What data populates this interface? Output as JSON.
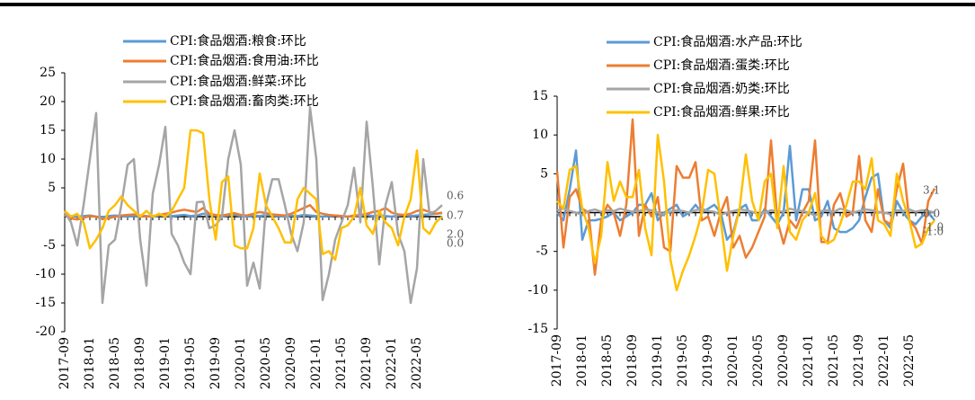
{
  "chart_data": [
    {
      "type": "line",
      "categories": [
        "2017-09",
        null,
        null,
        null,
        "2018-01",
        null,
        null,
        null,
        "2018-05",
        null,
        null,
        null,
        "2018-09",
        null,
        null,
        null,
        "2019-01",
        null,
        null,
        null,
        "2019-05",
        null,
        null,
        null,
        "2019-09",
        null,
        null,
        null,
        "2020-01",
        null,
        null,
        null,
        "2020-05",
        null,
        null,
        null,
        "2020-09",
        null,
        null,
        null,
        "2021-01",
        null,
        null,
        null,
        "2021-05",
        null,
        null,
        null,
        "2021-09",
        null,
        null,
        null,
        "2022-01",
        null,
        null,
        null,
        "2022-05",
        null,
        null,
        null,
        null
      ],
      "ylim": [
        -20,
        25
      ],
      "yticks": [
        -20,
        -15,
        -10,
        -5,
        5,
        10,
        15,
        20,
        25
      ],
      "series": [
        {
          "name": "CPI:食品烟酒:粮食:环比",
          "color": "#5b9bd5",
          "values": [
            0.2,
            0.1,
            0,
            0.1,
            0.2,
            0,
            -0.1,
            0.1,
            0.2,
            0.1,
            0,
            0.1,
            0.2,
            0.1,
            0,
            0.2,
            0.3,
            0.1,
            0.2,
            0.3,
            0.1,
            0.2,
            0.5,
            0.3,
            0.2,
            0.1,
            0.2,
            0.3,
            0.1,
            0,
            0.2,
            0.1,
            0.3,
            0.2,
            0.1,
            0,
            0.2,
            0.1,
            0.3,
            0.2,
            0.1,
            0,
            0.1,
            0.2,
            0.1,
            0,
            0.1,
            0.2,
            0.3,
            0.1,
            0.2,
            0.1,
            0,
            0.2,
            0.3,
            0.1,
            0.2,
            0.3,
            0.4,
            0.5,
            0.6
          ]
        },
        {
          "name": "CPI:食品烟酒:食用油:环比",
          "color": "#ed7d31",
          "values": [
            0.3,
            -0.3,
            -0.5,
            -0.2,
            0.1,
            0,
            -0.4,
            -0.3,
            0,
            0.2,
            0.3,
            0.4,
            0.2,
            0,
            0.1,
            0.3,
            0.5,
            0.7,
            1,
            1.2,
            1,
            0.8,
            1.5,
            0.5,
            0.3,
            0.2,
            0.4,
            0.6,
            0.3,
            0.2,
            0.5,
            0.8,
            0.6,
            0.4,
            0.3,
            0.2,
            0.5,
            1,
            1.5,
            2,
            0.8,
            0.5,
            0.3,
            0.2,
            0.1,
            0,
            0.2,
            0.3,
            0.5,
            0.8,
            1,
            1.5,
            0.7,
            0.4,
            0.3,
            0.5,
            1,
            1.2,
            0.8,
            0.5,
            0.7
          ]
        },
        {
          "name": "CPI:食品烟酒:鲜菜:环比",
          "color": "#a5a5a5",
          "values": [
            0.8,
            -1,
            -5,
            2,
            10,
            18,
            -15,
            -5,
            -4,
            2,
            9,
            10,
            -4,
            -12,
            4,
            9,
            15.6,
            -3,
            -5,
            -8,
            -10,
            2.5,
            2.6,
            -2,
            -1.5,
            0,
            10,
            15,
            9,
            -12,
            -8,
            -12.5,
            2,
            6.5,
            6.5,
            2,
            -3,
            -6,
            -1,
            19,
            10,
            -14.5,
            -10,
            -4,
            -1,
            2,
            8.5,
            -1,
            16.5,
            5,
            -8.3,
            2,
            6,
            -3,
            -6,
            -15,
            -9,
            10,
            0.5,
            1,
            2
          ]
        },
        {
          "name": "CPI:食品烟酒:畜肉类:环比",
          "color": "#ffc000",
          "values": [
            1,
            0,
            0.5,
            -1,
            -5.5,
            -4,
            -2,
            1,
            2,
            3.5,
            2,
            1,
            0,
            1,
            0,
            0.5,
            0,
            1,
            3,
            5,
            15,
            15,
            14.5,
            3,
            -4,
            6,
            7,
            -5,
            -5.5,
            -5.5,
            -2,
            7.5,
            2,
            0,
            -2,
            -4.5,
            -4.5,
            3,
            5,
            4,
            3,
            -6.5,
            -6,
            -7.5,
            -2,
            -1.5,
            0,
            5,
            -1.5,
            -3,
            1,
            -1,
            -2,
            -5,
            0,
            3,
            11.5,
            -2,
            -3,
            -1,
            0
          ]
        }
      ],
      "annotations": [
        "0.6",
        "0.7",
        "2.0",
        "0.0"
      ]
    },
    {
      "type": "line",
      "categories": [
        "2017-09",
        null,
        null,
        null,
        "2018-01",
        null,
        null,
        null,
        "2018-05",
        null,
        null,
        null,
        "2018-09",
        null,
        null,
        null,
        "2019-01",
        null,
        null,
        null,
        "2019-05",
        null,
        null,
        null,
        "2019-09",
        null,
        null,
        null,
        "2020-01",
        null,
        null,
        null,
        "2020-05",
        null,
        null,
        null,
        "2020-09",
        null,
        null,
        null,
        "2021-01",
        null,
        null,
        null,
        "2021-05",
        null,
        null,
        null,
        "2021-09",
        null,
        null,
        null,
        "2022-01",
        null,
        null,
        null,
        "2022-05",
        null,
        null,
        null,
        null
      ],
      "ylim": [
        -15,
        15
      ],
      "yticks": [
        -15,
        -10,
        -5,
        5,
        10,
        15
      ],
      "series": [
        {
          "name": "CPI:食品烟酒:水产品:环比",
          "color": "#5b9bd5",
          "values": [
            0,
            -1,
            3,
            8,
            -3.5,
            -1,
            -1,
            -0.8,
            -0.5,
            0,
            -1,
            -0.5,
            0,
            1,
            1,
            2.5,
            -1,
            0,
            0.5,
            1,
            -0.5,
            0,
            1,
            0,
            0.5,
            1,
            0,
            -3.5,
            -2.5,
            0.5,
            1,
            -1,
            -1,
            0.5,
            -0.5,
            -1.5,
            0,
            8.6,
            -1,
            3,
            3,
            -1,
            -0.5,
            1.5,
            -2,
            -2.5,
            -2.5,
            -2,
            -1,
            2,
            4.5,
            5,
            -1,
            -2,
            1.5,
            0,
            -1,
            -1.5,
            -0.5,
            0,
            -1
          ]
        },
        {
          "name": "CPI:食品烟酒:蛋类:环比",
          "color": "#ed7d31",
          "values": [
            5.3,
            -4.5,
            2,
            3,
            0.5,
            0,
            -8,
            -1,
            1,
            0,
            -3,
            1,
            12,
            -3,
            1,
            -0.5,
            2,
            -4.5,
            -5,
            6,
            4.5,
            4.5,
            6.5,
            -1,
            -0.5,
            -3,
            0,
            2,
            -4.5,
            -3,
            -5.8,
            -4.5,
            -2.5,
            -0.5,
            9.3,
            -1,
            -4,
            -1,
            -2,
            0,
            1.5,
            9.3,
            -3.8,
            -3.8,
            1,
            2.5,
            -0.5,
            0,
            7.3,
            -1,
            -2.5,
            3,
            -1,
            -1.5,
            3,
            6.3,
            -1,
            -2,
            -4,
            1.5,
            3.1
          ]
        },
        {
          "name": "CPI:食品烟酒:奶类:环比",
          "color": "#a5a5a5",
          "values": [
            0.3,
            0.5,
            0.2,
            0,
            -0.3,
            0.2,
            0.4,
            0.1,
            0.3,
            0.2,
            0.5,
            0.3,
            0.1,
            0.2,
            0.4,
            0.3,
            0,
            -0.2,
            0.1,
            0.3,
            0.2,
            0,
            0.3,
            0.5,
            0.2,
            0.1,
            -0.3,
            0,
            0.2,
            0.4,
            0.3,
            0.1,
            -0.2,
            0,
            0.3,
            0.2,
            0.1,
            0.5,
            0.3,
            0.2,
            0,
            -0.4,
            0.2,
            0.3,
            0.1,
            0.5,
            0.3,
            0,
            0.2,
            0.4,
            0.3,
            0.1,
            0,
            -0.2,
            0.3,
            0.2,
            0.4,
            0.1,
            0.3,
            0.2,
            0
          ]
        },
        {
          "name": "CPI:食品烟酒:鲜果:环比",
          "color": "#ffc000",
          "values": [
            1.5,
            0.5,
            5.5,
            6,
            0.5,
            -2,
            -6.5,
            -3,
            6.5,
            1.5,
            4,
            2,
            2,
            5.5,
            -2,
            -5.5,
            10,
            4,
            -6,
            -10,
            -7.5,
            -5.5,
            -3,
            0,
            5.5,
            5,
            -1,
            -7.5,
            -3,
            0.5,
            7.5,
            1.5,
            -1,
            4,
            5,
            -2,
            6,
            -2.5,
            -3.5,
            -1,
            0,
            2.5,
            -3,
            -4,
            -3.5,
            -1.5,
            1,
            4,
            4,
            3,
            7,
            -1,
            -1.5,
            -3,
            5,
            1.5,
            -1,
            -4.5,
            -4,
            -2,
            -1
          ]
        }
      ],
      "annotations": [
        "3.1",
        "0.0",
        "-1.0",
        "-1.0"
      ]
    }
  ]
}
